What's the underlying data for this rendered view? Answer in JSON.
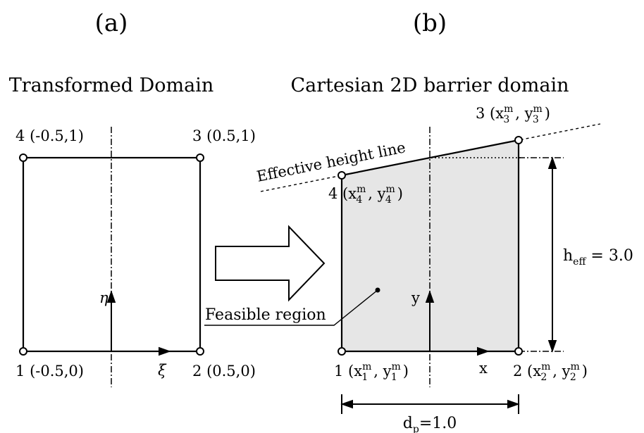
{
  "panels": {
    "a": {
      "label": "(a)",
      "title": "Transformed Domain",
      "nodes": [
        {
          "num": "1",
          "coord": "(-0.5,0)"
        },
        {
          "num": "2",
          "coord": "(0.5,0)"
        },
        {
          "num": "3",
          "coord": "(0.5,1)"
        },
        {
          "num": "4",
          "coord": "(-0.5,1)"
        }
      ],
      "axes": {
        "vertical": "η",
        "horizontal": "ξ"
      }
    },
    "b": {
      "label": "(b)",
      "title": "Cartesian 2D barrier domain",
      "nodes": [
        {
          "num": "1",
          "x": "x",
          "y": "y",
          "sup": "m",
          "sub": "1"
        },
        {
          "num": "2",
          "x": "x",
          "y": "y",
          "sup": "m",
          "sub": "2"
        },
        {
          "num": "3",
          "x": "x",
          "y": "y",
          "sup": "m",
          "sub": "3"
        },
        {
          "num": "4",
          "x": "x",
          "y": "y",
          "sup": "m",
          "sub": "4"
        }
      ],
      "axes": {
        "vertical": "y",
        "horizontal": "x"
      },
      "effective_height_line": "Effective height line",
      "feasible_region": "Feasible region",
      "h_eff": {
        "base": "h",
        "sub": "eff",
        "value": " = 3.0"
      },
      "d_p": {
        "base": "d",
        "sub": "p",
        "value": "=1.0"
      }
    }
  },
  "colors": {
    "line": "#000000",
    "fill": "#e6e6e6",
    "background": "#ffffff"
  }
}
